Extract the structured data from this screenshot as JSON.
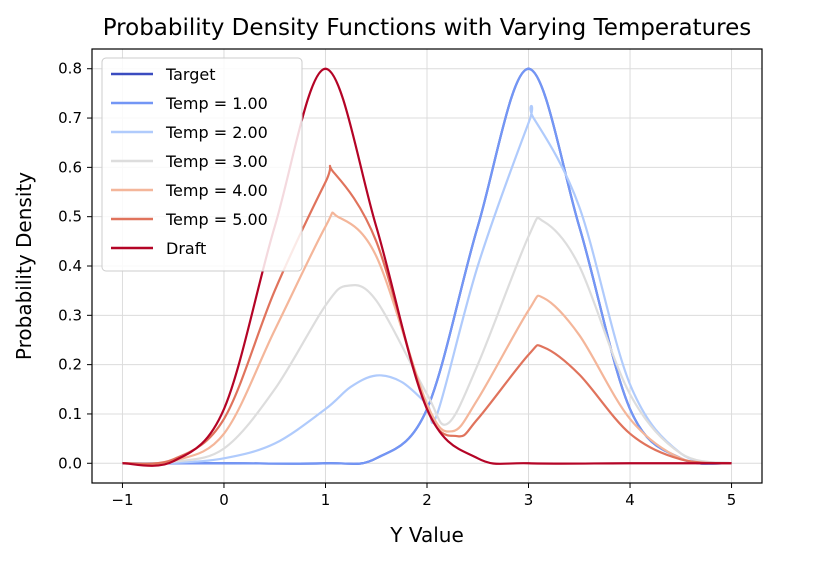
{
  "chart_data": {
    "type": "line",
    "title": "Probability Density Functions with Varying Temperatures",
    "xlabel": "Y Value",
    "ylabel": "Probability Density",
    "xlim": [
      -1.3,
      5.3
    ],
    "ylim": [
      -0.04,
      0.84
    ],
    "xticks": [
      -1,
      0,
      1,
      2,
      3,
      4,
      5
    ],
    "yticks": [
      0.0,
      0.1,
      0.2,
      0.3,
      0.4,
      0.5,
      0.6,
      0.7,
      0.8
    ],
    "grid": true,
    "legend_position": "upper-left",
    "series": [
      {
        "name": "Target",
        "color": "#3b4cc0",
        "x": [
          -1,
          0,
          1,
          1.5,
          2,
          2.5,
          3,
          3.5,
          4,
          4.5,
          5
        ],
        "y": [
          0.0,
          0.0,
          0.0,
          0.01,
          0.11,
          0.48,
          0.8,
          0.48,
          0.11,
          0.01,
          0.0
        ]
      },
      {
        "name": "Temp = 1.00",
        "color": "#7396f5",
        "x": [
          -1,
          0,
          1,
          1.5,
          2,
          2.5,
          3,
          3.5,
          4,
          4.5,
          5
        ],
        "y": [
          0.0,
          0.0,
          0.0,
          0.01,
          0.11,
          0.48,
          0.8,
          0.48,
          0.11,
          0.01,
          0.0
        ]
      },
      {
        "name": "Temp = 2.00",
        "color": "#b0cbfc",
        "x": [
          -1,
          -0.5,
          0,
          0.5,
          1,
          1.25,
          1.5,
          1.75,
          2,
          2.1,
          2.5,
          3,
          3.05,
          3.5,
          4,
          4.5,
          5
        ],
        "y": [
          0.0,
          0.001,
          0.01,
          0.04,
          0.11,
          0.155,
          0.178,
          0.165,
          0.12,
          0.1,
          0.4,
          0.69,
          0.7,
          0.52,
          0.16,
          0.02,
          0.0
        ]
      },
      {
        "name": "Temp = 3.00",
        "color": "#dddddd",
        "x": [
          -1,
          -0.5,
          0,
          0.5,
          1,
          1.22,
          1.5,
          2,
          2.2,
          2.5,
          3,
          3.15,
          3.5,
          4,
          4.5,
          5
        ],
        "y": [
          0.0,
          0.003,
          0.03,
          0.15,
          0.32,
          0.36,
          0.33,
          0.14,
          0.08,
          0.2,
          0.46,
          0.49,
          0.4,
          0.14,
          0.02,
          0.0
        ]
      },
      {
        "name": "Temp = 4.00",
        "color": "#f4b69a",
        "x": [
          -1,
          -0.5,
          0,
          0.5,
          1,
          1.12,
          1.5,
          2,
          2.25,
          2.5,
          3,
          3.15,
          3.5,
          4,
          4.5,
          5
        ],
        "y": [
          0.0,
          0.005,
          0.06,
          0.27,
          0.48,
          0.5,
          0.42,
          0.12,
          0.065,
          0.13,
          0.31,
          0.335,
          0.26,
          0.09,
          0.01,
          0.0
        ]
      },
      {
        "name": "Temp = 5.00",
        "color": "#e0735c",
        "x": [
          -1,
          -0.5,
          0,
          0.5,
          1,
          1.08,
          1.5,
          2,
          2.3,
          2.5,
          3,
          3.15,
          3.5,
          4,
          4.5,
          5
        ],
        "y": [
          0.0,
          0.008,
          0.09,
          0.35,
          0.57,
          0.59,
          0.45,
          0.11,
          0.055,
          0.09,
          0.22,
          0.235,
          0.18,
          0.06,
          0.008,
          0.0
        ]
      },
      {
        "name": "Draft",
        "color": "#b40426",
        "x": [
          -1,
          -0.5,
          0,
          0.5,
          1,
          1.5,
          2,
          2.5,
          3,
          4,
          5
        ],
        "y": [
          0.0,
          0.004,
          0.11,
          0.48,
          0.8,
          0.48,
          0.11,
          0.01,
          0.0,
          0.0,
          0.0
        ]
      }
    ]
  }
}
